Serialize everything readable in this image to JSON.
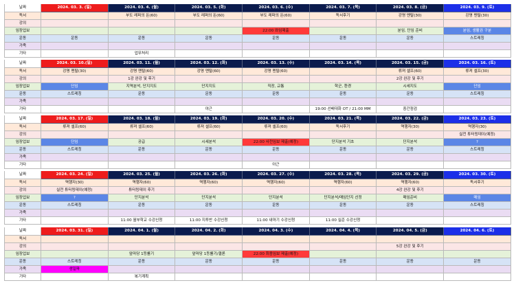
{
  "row_labels": [
    "독서",
    "강의",
    "임장업보",
    "운동",
    "가족",
    "기타"
  ],
  "weeks": [
    {
      "days": [
        {
          "date": "2024. 03. 3. (일)",
          "type": "sun"
        },
        {
          "date": "2024. 03. 4. (월)"
        },
        {
          "date": "2024. 03. 5. (화)"
        },
        {
          "date": "2024. 03. 6. (수)"
        },
        {
          "date": "2024. 03. 7. (목)"
        },
        {
          "date": "2024. 03. 8. (금)"
        },
        {
          "date": "2024. 03. 9. (토)",
          "type": "sat"
        }
      ],
      "rows": [
        [
          "",
          "부도 레퍼의 돈(60)",
          "부도 레퍼의 돈(60)",
          "부도 레퍼의 돈(60)",
          "독서후기",
          "강명 멘탈(30)",
          "강명 멘탈(30)"
        ],
        [
          "",
          "",
          "",
          "",
          "",
          "",
          ""
        ],
        [
          "",
          "",
          "",
          "22:00 와임제출",
          "",
          "분임, 단임 준비",
          "분임, 생활권 구분"
        ],
        [
          "운동",
          "운동",
          "운동",
          "운동",
          "운동",
          "운동",
          "스트레칭"
        ],
        [
          "",
          "",
          "",
          "",
          "",
          "",
          ""
        ],
        [
          "",
          "업무처리",
          "",
          "",
          "",
          "",
          ""
        ]
      ],
      "highlights": {
        "2-3": "red",
        "2-6": "blue"
      }
    },
    {
      "days": [
        {
          "date": "2024. 03. 10.(일)",
          "type": "sun"
        },
        {
          "date": "2024. 03. 11. (월)"
        },
        {
          "date": "2024. 03. 12. (화)"
        },
        {
          "date": "2024. 03. 13. (수)"
        },
        {
          "date": "2024. 03. 14. (목)"
        },
        {
          "date": "2024. 03. 15. (금)"
        },
        {
          "date": "2024. 03. 16. (토)",
          "type": "sat"
        }
      ],
      "rows": [
        [
          "강명 멘탈(30)",
          "강명 멘탈(60)",
          "강명 멘탈(60)",
          "강명 멘탈(60)",
          "",
          "류져 셀프(60)",
          "류져 셀프(30)"
        ],
        [
          "",
          "1강 완강 및 후기",
          "",
          "",
          "",
          "2강 완강 및 후기",
          ""
        ],
        [
          "단임",
          "지역분석, 단지지도",
          "단지지도",
          "직장, 교통",
          "학군, 환경",
          "시세지도",
          "단임"
        ],
        [
          "스트레칭",
          "운동",
          "운동",
          "운동",
          "운동",
          "운동",
          "스트레칭"
        ],
        [
          "",
          "",
          "",
          "",
          "",
          "",
          ""
        ],
        [
          "",
          "",
          "야근",
          "",
          "19:00 선배대화 OT / 21:00 MM",
          "중간점검",
          ""
        ]
      ],
      "highlights": {
        "2-0": "blue",
        "2-6": "blue"
      }
    },
    {
      "days": [
        {
          "date": "2024. 03. 17. (일)",
          "type": "sun"
        },
        {
          "date": "2024. 03. 18. (월)"
        },
        {
          "date": "2024. 03. 19. (화)"
        },
        {
          "date": "2024. 03. 20. (수)"
        },
        {
          "date": "2024. 03. 21. (목)"
        },
        {
          "date": "2024. 03. 22. (금)"
        },
        {
          "date": "2024. 03. 23. (토)",
          "type": "sat"
        }
      ],
      "rows": [
        [
          "류져 셀프(60)",
          "류져 셀프(60)",
          "류져 셀프(60)",
          "류져 셀프(60)",
          "독서후기",
          "역행자(30)",
          "역행자(30)"
        ],
        [
          "",
          "",
          "",
          "",
          "",
          "",
          "실전 튜터링데이(예정)"
        ],
        [
          "단임",
          "공급",
          "시세분석",
          "22:00 사전임보 제출(예정)",
          "단지분석 기초",
          "단지분석",
          "?"
        ],
        [
          "스트레칭",
          "운동",
          "운동",
          "운동",
          "운동",
          "운동",
          "스트레칭"
        ],
        [
          "",
          "",
          "",
          "",
          "",
          "",
          ""
        ],
        [
          "",
          "",
          "",
          "아근",
          "",
          "",
          ""
        ]
      ],
      "highlights": {
        "2-0": "blue",
        "2-3": "red",
        "2-6": "blue"
      }
    },
    {
      "days": [
        {
          "date": "2024. 03. 24. (일)",
          "type": "sun"
        },
        {
          "date": "2024. 03. 25. (월)"
        },
        {
          "date": "2024. 03. 26. (화)"
        },
        {
          "date": "2024. 03. 27. (수)"
        },
        {
          "date": "2024. 03. 28. (목)"
        },
        {
          "date": "2024. 03. 29. (금)"
        },
        {
          "date": "2024. 03. 30. (토)",
          "type": "sat"
        }
      ],
      "rows": [
        [
          "역행자(30)",
          "역행자(60)",
          "역행자(60)",
          "역행자(60)",
          "역행자(60)",
          "역행자(60)",
          "독서후기"
        ],
        [
          "실전 튜터링데이(예정)",
          "튜터링데이 후기",
          "",
          "",
          "",
          "4강 완강 및 후기",
          ""
        ],
        [
          "?",
          "단지분석",
          "단지분석",
          "단지분석",
          "단지분석/매임단지 선정",
          "매임준비",
          "매임"
        ],
        [
          "스트레칭",
          "운동",
          "운동",
          "운동",
          "운동",
          "운동",
          "스트레칭"
        ],
        [
          "",
          "",
          "",
          "",
          "",
          "",
          ""
        ],
        [
          "",
          "11:00 월부학교 수강신청",
          "11:00 지투반 수강신청",
          "11:00 내마기 수강신청",
          "11:00 실준 수강신청",
          "",
          ""
        ]
      ],
      "highlights": {
        "2-0": "blue",
        "2-6": "blue"
      }
    },
    {
      "days": [
        {
          "date": "2024. 03. 31. (일)",
          "type": "sun"
        },
        {
          "date": "2024. 04. 1. (월)"
        },
        {
          "date": "2024. 04. 2. (화)"
        },
        {
          "date": "2024. 04. 3. (수)"
        },
        {
          "date": "2024. 04. 4. (목)"
        },
        {
          "date": "2024. 04. 5. (금)"
        },
        {
          "date": "2024. 04. 6. (토)",
          "type": "sat"
        }
      ],
      "rows": [
        [
          "",
          "",
          "",
          "",
          "",
          "",
          ""
        ],
        [
          "",
          "",
          "",
          "",
          "",
          "5강 완강 및 후기",
          ""
        ],
        [
          "",
          "앞마당 1등롤기",
          "앞마당 1등롤기/결론",
          "22:00 최종임보 제출(예정)",
          "",
          "",
          ""
        ],
        [
          "스트레칭",
          "운동",
          "운동",
          "운동",
          "운동",
          "운동",
          "운동"
        ],
        [
          "생일파",
          "",
          "",
          "",
          "",
          "",
          ""
        ],
        [
          "",
          "복기계획",
          "",
          "",
          "",
          "",
          ""
        ]
      ],
      "highlights": {
        "2-3": "red",
        "4-0": "mag"
      }
    }
  ]
}
